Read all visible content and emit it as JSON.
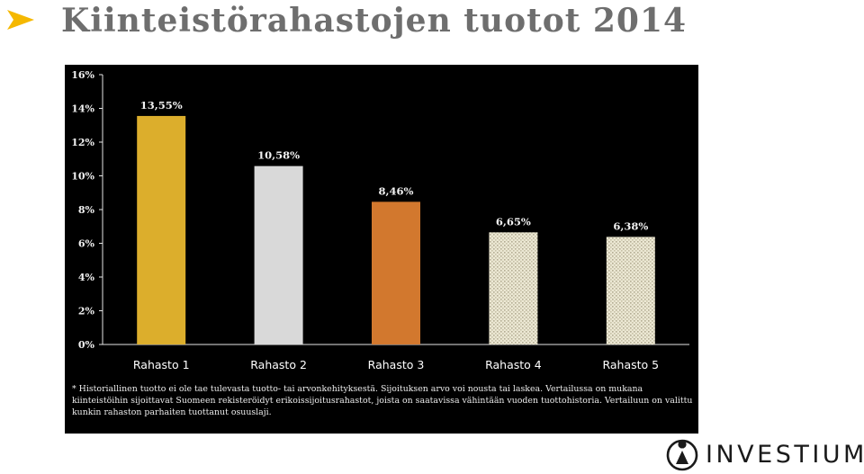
{
  "slide": {
    "title": "Kiinteistörahastojen tuotot 2014",
    "footnote": "* Historiallinen tuotto ei ole tae tulevasta tuotto- tai arvonkehityksestä. Sijoituksen arvo voi nousta tai laskea. Vertailussa on mukana kiinteistöihin sijoittavat Suomeen rekisteröidyt erikoissijoitusrahastot, joista on saatavissa vähintään vuoden tuottohistoria. Vertailuun on valittu kunkin rahaston parhaiten tuottanut osuuslaji.",
    "logo_text": "INVESTIUM",
    "colors": {
      "title": "#6e6e6e",
      "bullet": "#f5b800",
      "panel_background": "#000000"
    }
  },
  "chart_data": {
    "type": "bar",
    "categories": [
      "Rahasto 1",
      "Rahasto 2",
      "Rahasto 3",
      "Rahasto 4",
      "Rahasto 5"
    ],
    "values": [
      13.55,
      10.58,
      8.46,
      6.65,
      6.38
    ],
    "value_labels": [
      "13,55%",
      "10,58%",
      "8,46%",
      "6,65%",
      "6,38%"
    ],
    "bar_colors": [
      "#dcae2c",
      "#d9d9d9",
      "#d2782e",
      "#e8e4cf",
      "#e8e4cf"
    ],
    "bar_patterns": [
      "solid",
      "solid",
      "solid",
      "dotted",
      "dotted"
    ],
    "ylim": [
      0,
      16
    ],
    "yticks": [
      0,
      2,
      4,
      6,
      8,
      10,
      12,
      14,
      16
    ],
    "ytick_labels": [
      "0%",
      "2%",
      "4%",
      "6%",
      "8%",
      "10%",
      "12%",
      "14%",
      "16%"
    ],
    "title": "",
    "xlabel": "",
    "ylabel": "",
    "grid": false,
    "legend": false
  }
}
